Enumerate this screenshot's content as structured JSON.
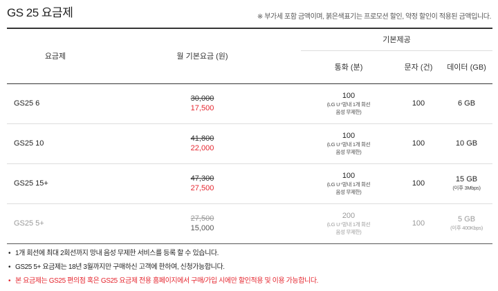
{
  "title": "GS 25 요금제",
  "notice": "※ 부가세 포함 금액이며, 붉은색표기는 프로모션 할인, 약정 할인이 적용된 금액입니다.",
  "table": {
    "headers": {
      "plan": "요금제",
      "monthly_fee": "월 기본요금 (원)",
      "basic_provided": "기본제공",
      "call": "통화 (분)",
      "sms": "문자 (건)",
      "data": "데이터 (GB)"
    },
    "rows": [
      {
        "plan": "GS25 6",
        "old_price": "30,000",
        "price": "17,500",
        "call": "100",
        "call_note1": "(LG U⁺망내 1개 회선",
        "call_note2": "음성 무제한)",
        "sms": "100",
        "data": "6 GB",
        "data_note": ""
      },
      {
        "plan": "GS25 10",
        "old_price": "41,800",
        "price": "22,000",
        "call": "100",
        "call_note1": "(LG U⁺망내 1개 회선",
        "call_note2": "음성 무제한)",
        "sms": "100",
        "data": "10 GB",
        "data_note": ""
      },
      {
        "plan": "GS25 15+",
        "old_price": "47,300",
        "price": "27,500",
        "call": "100",
        "call_note1": "(LG U⁺망내 1개 회선",
        "call_note2": "음성 무제한)",
        "sms": "100",
        "data": "15 GB",
        "data_note": "(이후 3Mbps)"
      },
      {
        "plan": "GS25 5+",
        "old_price": "27,500",
        "price": "15,000",
        "call": "200",
        "call_note1": "(LG U⁺망내 1개 회선",
        "call_note2": "음성 무제한)",
        "sms": "100",
        "data": "5 GB",
        "data_note": "(이후 400Kbps)"
      }
    ]
  },
  "bullets": [
    "1개 회선에 최대 2회선까지 망내 음성 무제한 서비스를 등록 할 수 있습니다.",
    "GS25 5+ 요금제는 18년 3월까지만 구매하신 고객에 한하여, 신청가능합니다.",
    "본 요금제는 GS25 편의점 혹은 GS25 요금제 전용 홈페이지에서 구매/가입 시에만 할인적용 및 이용 가능합니다."
  ],
  "colors": {
    "accent_red": "#e5252e",
    "disabled_gray": "#999999"
  }
}
